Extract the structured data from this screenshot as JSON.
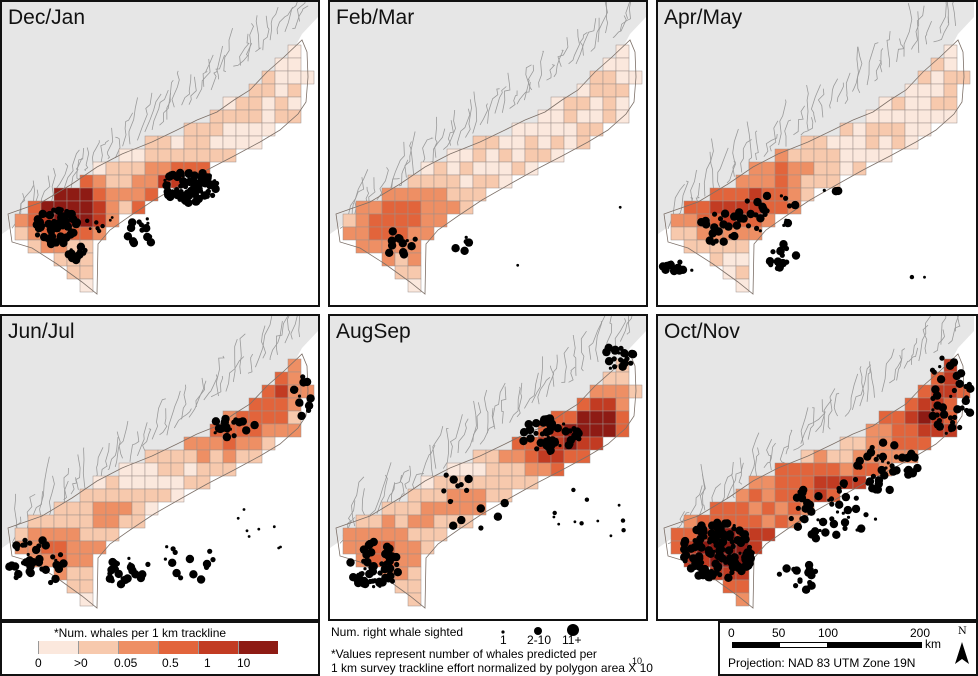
{
  "panels": [
    {
      "title": "Dec/Jan"
    },
    {
      "title": "Feb/Mar"
    },
    {
      "title": "Apr/May"
    },
    {
      "title": "Jun/Jul"
    },
    {
      "title": "AugSep"
    },
    {
      "title": "Oct/Nov"
    }
  ],
  "colors": {
    "land": "#e6e6e6",
    "coast": "#9a9a9a",
    "grid": "#9c8f8a",
    "classes": [
      "#fbe8dd",
      "#f7c9ad",
      "#ee8f64",
      "#e2643b",
      "#c23b22",
      "#8e1b14"
    ],
    "dot": "#000000"
  },
  "legend_density": {
    "title": "*Num. whales per 1 km trackline",
    "labels": [
      "0",
      ">0",
      "0.05",
      "0.5",
      "1",
      "10"
    ]
  },
  "legend_sightings": {
    "title": "Num. right whale sighted",
    "labels": [
      "1",
      "2-10",
      "11+"
    ],
    "note_line1": "*Values represent number of whales predicted per",
    "note_line2": "1 km survey trackline effort normalized by polygon area X 10",
    "note_exp": "10"
  },
  "scalebar": {
    "ticks": [
      "0",
      "50",
      "100",
      "200"
    ],
    "unit": "km",
    "north": "N",
    "projection": "Projection: NAD 83 UTM Zone 19N"
  }
}
